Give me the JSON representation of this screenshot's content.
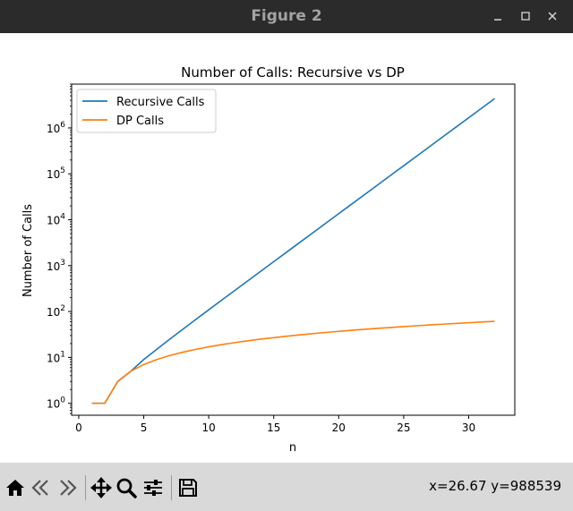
{
  "window": {
    "title": "Figure 2",
    "buttons": [
      "minimize-icon",
      "maximize-icon",
      "close-icon"
    ]
  },
  "toolbar": {
    "icons": [
      "home-icon",
      "back-arrow-icon",
      "forward-arrow-icon",
      "pan-move-icon",
      "zoom-magnifier-icon",
      "configure-subplots-icon",
      "save-floppy-icon"
    ],
    "coords_text": "x=26.67 y=988539"
  },
  "chart_data": {
    "type": "line",
    "title": "Number of Calls: Recursive vs DP",
    "xlabel": "n",
    "ylabel": "Number of Calls",
    "xlim": [
      -0.55,
      33.55
    ],
    "ylim": [
      0.55,
      9000000
    ],
    "yscale": "log",
    "grid": false,
    "legend_position": "upper-left",
    "x_ticks": [
      0,
      5,
      10,
      15,
      20,
      25,
      30
    ],
    "y_ticks": [
      {
        "value": 1,
        "base": "10",
        "exp": "0"
      },
      {
        "value": 10,
        "base": "10",
        "exp": "1"
      },
      {
        "value": 100,
        "base": "10",
        "exp": "2"
      },
      {
        "value": 1000,
        "base": "10",
        "exp": "3"
      },
      {
        "value": 10000,
        "base": "10",
        "exp": "4"
      },
      {
        "value": 100000,
        "base": "10",
        "exp": "5"
      },
      {
        "value": 1000000,
        "base": "10",
        "exp": "6"
      }
    ],
    "x": [
      1,
      2,
      3,
      4,
      5,
      6,
      7,
      8,
      9,
      10,
      11,
      12,
      13,
      14,
      15,
      16,
      17,
      18,
      19,
      20,
      21,
      22,
      23,
      24,
      25,
      26,
      27,
      28,
      29,
      30,
      31,
      32
    ],
    "series": [
      {
        "name": "Recursive Calls",
        "color": "#1f77b4",
        "values": [
          1,
          1,
          3,
          5,
          9,
          15,
          25,
          41,
          67,
          109,
          177,
          287,
          465,
          753,
          1219,
          1973,
          3193,
          5167,
          8361,
          13529,
          21891,
          35421,
          57313,
          92735,
          150049,
          242785,
          392835,
          635621,
          1028457,
          1664079,
          2692537,
          4356617
        ]
      },
      {
        "name": "DP Calls",
        "color": "#ff7f0e",
        "values": [
          1,
          1,
          3,
          5,
          7,
          9,
          11,
          13,
          15,
          17,
          19,
          21,
          23,
          25,
          27,
          29,
          31,
          33,
          35,
          37,
          39,
          41,
          43,
          45,
          47,
          49,
          51,
          53,
          55,
          57,
          59,
          61
        ]
      }
    ]
  }
}
